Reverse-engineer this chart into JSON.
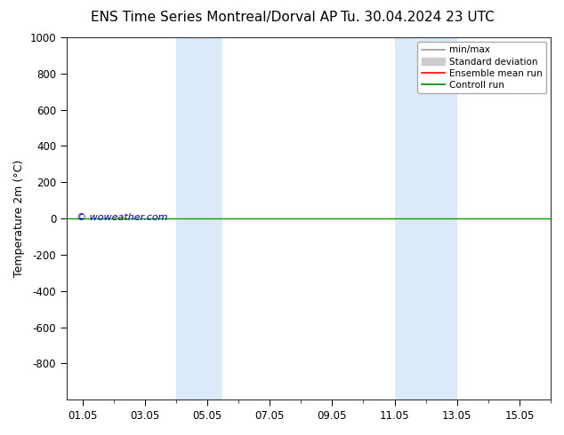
{
  "title_left": "ENS Time Series Montreal/Dorval AP",
  "title_right": "Tu. 30.04.2024 23 UTC",
  "ylabel": "Temperature 2m (°C)",
  "watermark": "© woweather.com",
  "background_color": "#ffffff",
  "plot_bg_color": "#ffffff",
  "ylim_top": -1000,
  "ylim_bottom": 1000,
  "yticks": [
    -800,
    -600,
    -400,
    -200,
    0,
    200,
    400,
    600,
    800,
    1000
  ],
  "xtick_labels": [
    "01.05",
    "03.05",
    "05.05",
    "07.05",
    "09.05",
    "11.05",
    "13.05",
    "15.05"
  ],
  "xtick_positions": [
    1,
    3,
    5,
    7,
    9,
    11,
    13,
    15
  ],
  "xlim": [
    0.5,
    16
  ],
  "shaded_bands": [
    {
      "x_start": 4.0,
      "x_end": 5.5
    },
    {
      "x_start": 11.0,
      "x_end": 13.0
    }
  ],
  "shaded_color": "#daeaf8",
  "shaded_alpha": 1.0,
  "green_line_y": 0,
  "green_line_color": "#00aa00",
  "red_line_color": "#ff0000",
  "legend_items": [
    {
      "label": "min/max",
      "color": "#999999",
      "lw": 1.2
    },
    {
      "label": "Standard deviation",
      "color": "#cccccc",
      "lw": 5
    },
    {
      "label": "Ensemble mean run",
      "color": "#ff0000",
      "lw": 1.2
    },
    {
      "label": "Controll run",
      "color": "#008800",
      "lw": 1.2
    }
  ],
  "title_fontsize": 11,
  "axis_label_fontsize": 9,
  "tick_fontsize": 8.5,
  "legend_fontsize": 7.5,
  "watermark_color": "#0000cc",
  "watermark_fontsize": 8
}
